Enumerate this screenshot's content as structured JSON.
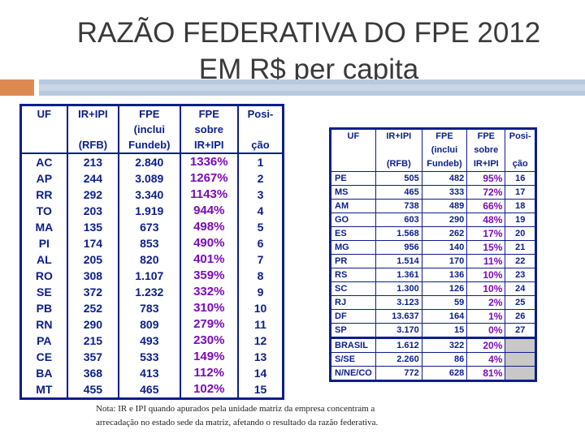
{
  "title": {
    "line1": "RAZÃO FEDERATIVA DO FPE 2012",
    "line2_prefix": "EM R$ ",
    "line2_underlined": "per capita"
  },
  "table_left": {
    "headers": {
      "row1": [
        "UF",
        "IR+IPI",
        "FPE",
        "FPE",
        "Posi-"
      ],
      "row2": [
        "",
        "",
        "(inclui",
        "sobre",
        ""
      ],
      "row3": [
        "",
        "(RFB)",
        "Fundeb)",
        "IR+IPI",
        "ção"
      ]
    },
    "rows": [
      [
        "AC",
        "213",
        "2.840",
        "1336%",
        "1"
      ],
      [
        "AP",
        "244",
        "3.089",
        "1267%",
        "2"
      ],
      [
        "RR",
        "292",
        "3.340",
        "1143%",
        "3"
      ],
      [
        "TO",
        "203",
        "1.919",
        "944%",
        "4"
      ],
      [
        "MA",
        "135",
        "673",
        "498%",
        "5"
      ],
      [
        "PI",
        "174",
        "853",
        "490%",
        "6"
      ],
      [
        "AL",
        "205",
        "820",
        "401%",
        "7"
      ],
      [
        "RO",
        "308",
        "1.107",
        "359%",
        "8"
      ],
      [
        "SE",
        "372",
        "1.232",
        "332%",
        "9"
      ],
      [
        "PB",
        "252",
        "783",
        "310%",
        "10"
      ],
      [
        "RN",
        "290",
        "809",
        "279%",
        "11"
      ],
      [
        "PA",
        "215",
        "493",
        "230%",
        "12"
      ],
      [
        "CE",
        "357",
        "533",
        "149%",
        "13"
      ],
      [
        "BA",
        "368",
        "413",
        "112%",
        "14"
      ],
      [
        "MT",
        "455",
        "465",
        "102%",
        "15"
      ]
    ]
  },
  "table_right": {
    "headers": {
      "row1": [
        "UF",
        "IR+IPI",
        "FPE",
        "FPE",
        "Posi-"
      ],
      "row2": [
        "",
        "",
        "(inclui",
        "sobre",
        ""
      ],
      "row3": [
        "",
        "(RFB)",
        "Fundeb)",
        "IR+IPI",
        "ção"
      ]
    },
    "rows": [
      [
        "PE",
        "505",
        "482",
        "95%",
        "16"
      ],
      [
        "MS",
        "465",
        "333",
        "72%",
        "17"
      ],
      [
        "AM",
        "738",
        "489",
        "66%",
        "18"
      ],
      [
        "GO",
        "603",
        "290",
        "48%",
        "19"
      ],
      [
        "ES",
        "1.568",
        "262",
        "17%",
        "20"
      ],
      [
        "MG",
        "956",
        "140",
        "15%",
        "21"
      ],
      [
        "PR",
        "1.514",
        "170",
        "11%",
        "22"
      ],
      [
        "RS",
        "1.361",
        "136",
        "10%",
        "23"
      ],
      [
        "SC",
        "1.300",
        "126",
        "10%",
        "24"
      ],
      [
        "RJ",
        "3.123",
        "59",
        "2%",
        "25"
      ],
      [
        "DF",
        "13.637",
        "164",
        "1%",
        "26"
      ],
      [
        "SP",
        "3.170",
        "15",
        "0%",
        "27"
      ]
    ],
    "summary_rows": [
      [
        "BRASIL",
        "1.612",
        "322",
        "20%",
        ""
      ],
      [
        "S/SE",
        "2.260",
        "86",
        "4%",
        ""
      ],
      [
        "N/NE/CO",
        "772",
        "628",
        "81%",
        ""
      ]
    ]
  },
  "note": {
    "line1": "Nota: IR e IPI quando apurados pela unidade matriz da empresa concentram a",
    "line2": "arrecadação no estado sede da matriz, afetando o resultado da razão federativa."
  },
  "colors": {
    "accent_orange": "#dd8a52",
    "accent_blue": "#b7c9de",
    "table_blue": "#0a1e8a",
    "percent_purple": "#7a0ab8"
  }
}
